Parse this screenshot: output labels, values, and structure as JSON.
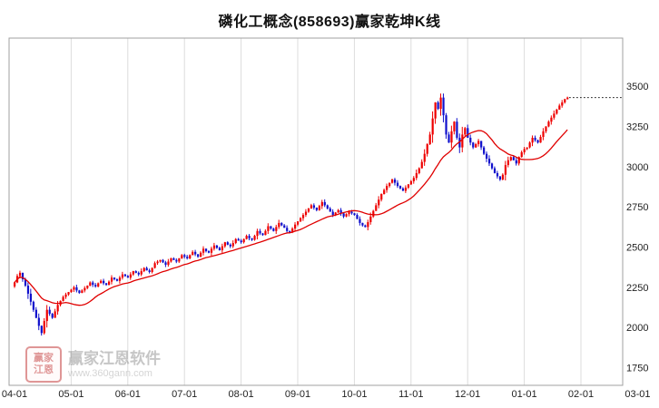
{
  "header": {
    "title": "磷化工概念(858693)赢家乾坤K线"
  },
  "watermark": {
    "brand": "赢家江恩软件",
    "url": "www.360gann.com",
    "logo_line1": "赢家",
    "logo_line2": "江恩"
  },
  "chart_data": {
    "type": "candlestick",
    "title": "磷化工概念(858693)赢家乾坤K线",
    "x_ticks": [
      "04-01",
      "05-01",
      "06-01",
      "07-01",
      "08-01",
      "09-01",
      "10-01",
      "11-01",
      "12-01",
      "01-01",
      "02-01",
      "03-01"
    ],
    "days_per_tick": 21,
    "y_ticks": [
      1750,
      2000,
      2250,
      2500,
      2750,
      3000,
      3250,
      3500
    ],
    "ylim": [
      1640,
      3800
    ],
    "grid": "vertical-only",
    "legend_position": "none",
    "up_color": "#ee0000",
    "down_color": "#1010cc",
    "ma_color": "#e00000",
    "grid_color": "#dcdcdc",
    "border_color": "#a0a0a0",
    "tick_label_color": "#222222",
    "ma_window": 20,
    "last_price": 3430,
    "max_high": 3455,
    "min_low": 1935,
    "dashed_line": {
      "price": 3430,
      "color": "#000000"
    },
    "closes": [
      2280,
      2320,
      2340,
      2300,
      2260,
      2210,
      2160,
      2110,
      2060,
      2010,
      1965,
      2040,
      2110,
      2085,
      2060,
      2100,
      2140,
      2165,
      2190,
      2205,
      2220,
      2235,
      2250,
      2230,
      2215,
      2230,
      2245,
      2260,
      2280,
      2265,
      2255,
      2275,
      2290,
      2275,
      2265,
      2285,
      2310,
      2300,
      2290,
      2310,
      2330,
      2320,
      2310,
      2330,
      2350,
      2340,
      2330,
      2350,
      2370,
      2355,
      2345,
      2370,
      2400,
      2410,
      2420,
      2405,
      2390,
      2410,
      2430,
      2420,
      2410,
      2430,
      2450,
      2440,
      2430,
      2450,
      2470,
      2455,
      2440,
      2465,
      2490,
      2475,
      2465,
      2490,
      2510,
      2495,
      2480,
      2505,
      2530,
      2515,
      2505,
      2525,
      2550,
      2540,
      2530,
      2550,
      2570,
      2555,
      2545,
      2570,
      2600,
      2585,
      2575,
      2600,
      2630,
      2615,
      2600,
      2625,
      2650,
      2635,
      2620,
      2600,
      2590,
      2615,
      2640,
      2660,
      2680,
      2700,
      2720,
      2740,
      2760,
      2745,
      2730,
      2755,
      2780,
      2760,
      2740,
      2720,
      2700,
      2715,
      2730,
      2710,
      2690,
      2705,
      2720,
      2710,
      2700,
      2675,
      2650,
      2635,
      2625,
      2655,
      2690,
      2725,
      2760,
      2795,
      2830,
      2855,
      2880,
      2900,
      2920,
      2900,
      2880,
      2865,
      2850,
      2870,
      2890,
      2910,
      2930,
      2960,
      2990,
      3030,
      3080,
      3140,
      3200,
      3300,
      3400,
      3360,
      3430,
      3320,
      3200,
      3150,
      3220,
      3280,
      3180,
      3120,
      3200,
      3240,
      3180,
      3150,
      3120,
      3140,
      3160,
      3120,
      3080,
      3050,
      3020,
      2990,
      2960,
      2940,
      2920,
      2950,
      3010,
      3040,
      3060,
      3040,
      3020,
      3060,
      3090,
      3110,
      3120,
      3150,
      3180,
      3165,
      3150,
      3185,
      3220,
      3250,
      3280,
      3305,
      3330,
      3355,
      3380,
      3400,
      3420,
      3430
    ]
  }
}
